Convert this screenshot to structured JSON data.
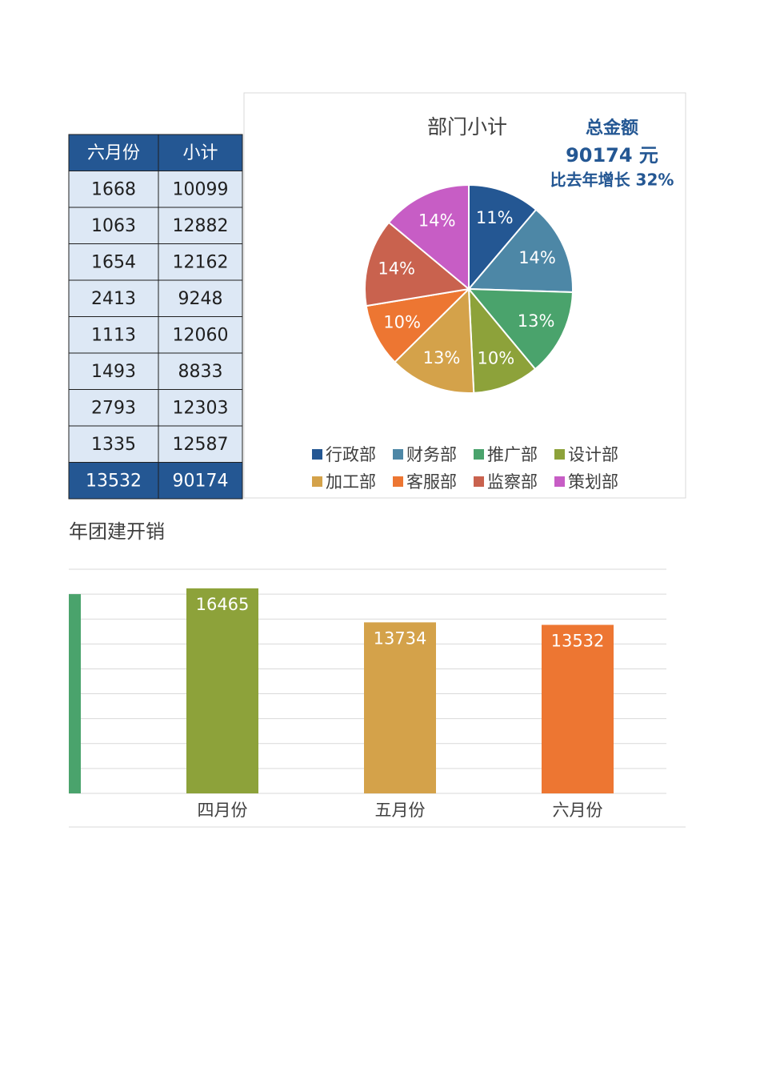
{
  "table": {
    "header": [
      "六月份",
      "小计"
    ],
    "rows": [
      [
        1668,
        10099
      ],
      [
        1063,
        12882
      ],
      [
        1654,
        12162
      ],
      [
        2413,
        9248
      ],
      [
        1113,
        12060
      ],
      [
        1493,
        8833
      ],
      [
        2793,
        12303
      ],
      [
        1335,
        12587
      ]
    ],
    "total": [
      13532,
      90174
    ]
  },
  "chart_data": [
    {
      "type": "pie",
      "title": "部门小计",
      "categories": [
        "行政部",
        "财务部",
        "推广部",
        "设计部",
        "加工部",
        "客服部",
        "监察部",
        "策划部"
      ],
      "values": [
        11.2,
        14.29,
        13.49,
        10.26,
        13.37,
        9.8,
        13.64,
        13.96
      ],
      "value_labels": [
        "11%",
        "14%",
        "13%",
        "10%",
        "13%",
        "10%",
        "14%",
        "14%"
      ],
      "colors": [
        "#245793",
        "#4d87a6",
        "#4aa36c",
        "#8da23a",
        "#d4a24a",
        "#ed7632",
        "#c9624e",
        "#c75dc5"
      ],
      "annotations": [
        "总金额",
        "90174 元",
        "比去年增长 32%"
      ],
      "legend": "bottom"
    },
    {
      "type": "bar",
      "title": "年团建开销",
      "categories": [
        null,
        "四月份",
        "五月份",
        "六月份"
      ],
      "values": [
        16000,
        16465,
        13734,
        13532
      ],
      "colors": [
        "#4aa36c",
        "#8da23a",
        "#d4a24a",
        "#ed7632"
      ],
      "ylim": [
        0,
        18000
      ],
      "yticks": [
        0,
        2000,
        4000,
        6000,
        8000,
        10000,
        12000,
        14000,
        16000,
        18000
      ],
      "grid": true
    }
  ]
}
